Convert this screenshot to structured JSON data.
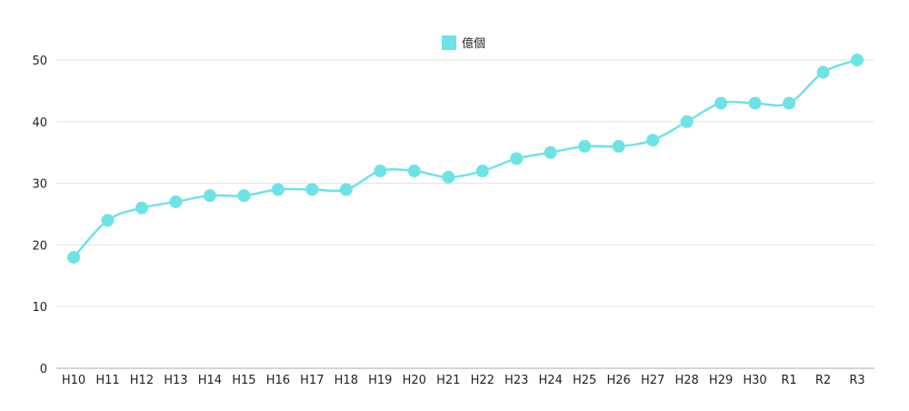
{
  "chart_data": {
    "type": "line",
    "categories": [
      "H10",
      "H11",
      "H12",
      "H13",
      "H14",
      "H15",
      "H16",
      "H17",
      "H18",
      "H19",
      "H20",
      "H21",
      "H22",
      "H23",
      "H24",
      "H25",
      "H26",
      "H27",
      "H28",
      "H29",
      "H30",
      "R1",
      "R2",
      "R3"
    ],
    "series": [
      {
        "name": "億個",
        "color": "#6ee3e6",
        "values": [
          18,
          24,
          26,
          27,
          28,
          28,
          29,
          29,
          29,
          32,
          32,
          31,
          32,
          34,
          35,
          36,
          36,
          37,
          40,
          43,
          43,
          43,
          48,
          50
        ]
      }
    ],
    "y_ticks": [
      0,
      10,
      20,
      30,
      40,
      50
    ],
    "ylim": [
      0,
      50
    ],
    "grid": true,
    "smooth": true,
    "legend_position": "top-center",
    "colors": {
      "line": "#6ee3e6",
      "grid": "#e2e2e2",
      "axis": "#aaaaaa",
      "text": "#222222"
    }
  }
}
